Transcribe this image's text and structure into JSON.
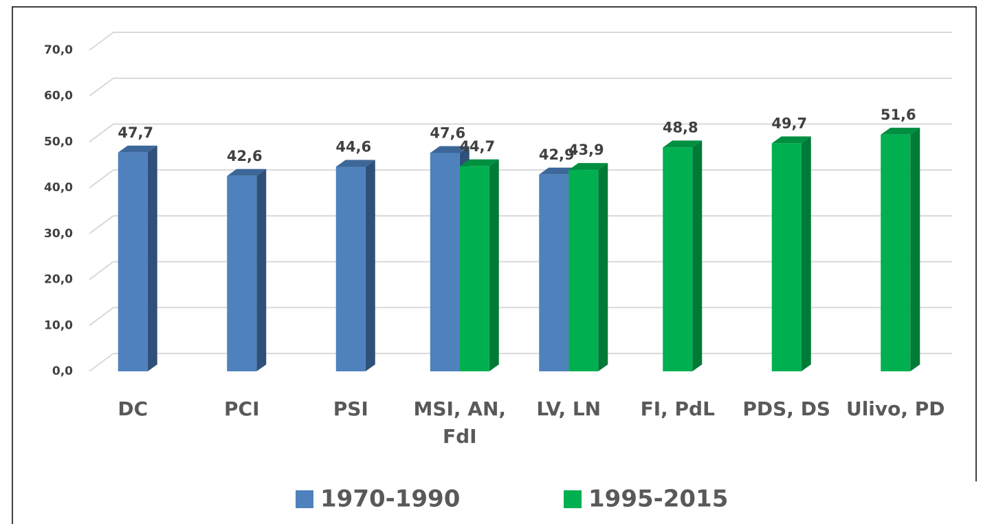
{
  "chart_data": {
    "type": "bar3d",
    "categories": [
      "DC",
      "PCI",
      "PSI",
      "MSI, AN, FdI",
      "LV, LN",
      "FI, PdL",
      "PDS, DS",
      "Ulivo, PD"
    ],
    "series": [
      {
        "name": "1970-1990",
        "color": "#4f81bd",
        "values": [
          47.7,
          42.6,
          44.6,
          47.6,
          42.9,
          null,
          null,
          null
        ],
        "value_labels": [
          "47,7",
          "42,6",
          "44,6",
          "47,6",
          "42,9",
          null,
          null,
          null
        ]
      },
      {
        "name": "1995-2015",
        "color": "#00b050",
        "values": [
          null,
          null,
          null,
          44.7,
          43.9,
          48.8,
          49.7,
          51.6
        ],
        "value_labels": [
          null,
          null,
          null,
          "44,7",
          "43,9",
          "48,8",
          "49,7",
          "51,6"
        ]
      }
    ],
    "ylim": [
      0,
      70
    ],
    "yticks": [
      {
        "value": 0,
        "label": "0,0"
      },
      {
        "value": 10,
        "label": "10,0"
      },
      {
        "value": 20,
        "label": "20,0"
      },
      {
        "value": 30,
        "label": "30,0"
      },
      {
        "value": 40,
        "label": "40,0"
      },
      {
        "value": 50,
        "label": "50,0"
      },
      {
        "value": 60,
        "label": "60,0"
      },
      {
        "value": 70,
        "label": "70,0"
      }
    ],
    "grid": true,
    "legend": "bottom"
  }
}
